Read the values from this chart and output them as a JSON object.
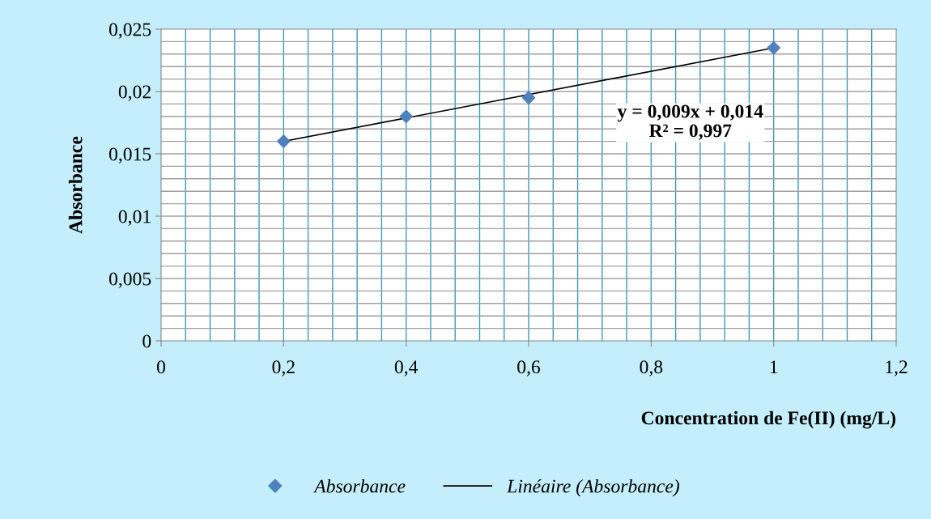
{
  "chart_data": {
    "type": "scatter",
    "xlabel": "Concentration de Fe(II) (mg/L)",
    "ylabel": "Absorbance",
    "x": [
      0.2,
      0.4,
      0.6,
      1.0
    ],
    "series": [
      {
        "name": "Absorbance",
        "color": "#4f81bd",
        "marker": "diamond",
        "values": [
          0.016,
          0.018,
          0.0195,
          0.0235
        ]
      },
      {
        "name": "Linéaire (Absorbance)",
        "type": "line",
        "color": "#000000",
        "marker": "none",
        "line_style": "solid",
        "x": [
          0.2,
          1.0
        ],
        "values": [
          0.016,
          0.0235
        ]
      }
    ],
    "annotations": [
      "y = 0,009x + 0,014\nR² = 0,997"
    ],
    "xlim": [
      0,
      1.2
    ],
    "xticks": [
      {
        "value": 0,
        "label": "0"
      },
      {
        "value": 0.2,
        "label": "0,2"
      },
      {
        "value": 0.4,
        "label": "0,4"
      },
      {
        "value": 0.6,
        "label": "0,6"
      },
      {
        "value": 0.8,
        "label": "0,8"
      },
      {
        "value": 1.0,
        "label": "1"
      },
      {
        "value": 1.2,
        "label": "1,2"
      }
    ],
    "ylim": [
      0,
      0.025
    ],
    "yticks": [
      {
        "value": 0,
        "label": "0"
      },
      {
        "value": 0.005,
        "label": "0,005"
      },
      {
        "value": 0.01,
        "label": "0,01"
      },
      {
        "value": 0.015,
        "label": "0,015"
      },
      {
        "value": 0.02,
        "label": "0,02"
      },
      {
        "value": 0.025,
        "label": "0,025"
      }
    ],
    "grid": true,
    "legend": "bottom"
  }
}
